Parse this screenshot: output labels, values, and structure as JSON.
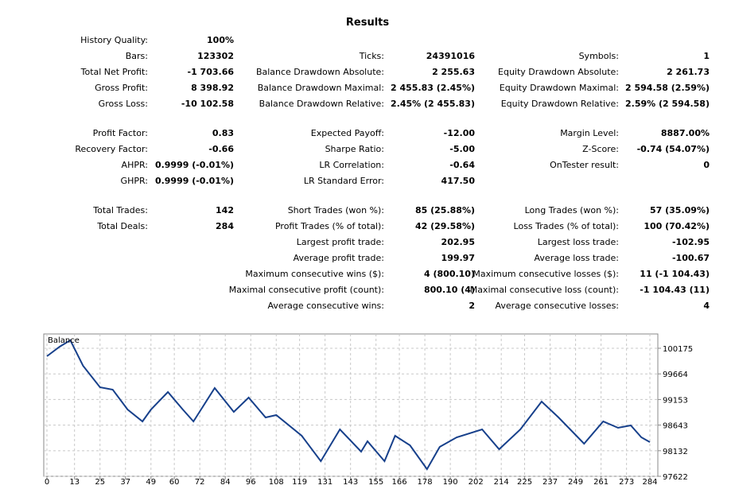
{
  "report": {
    "title": "Results",
    "sections": [
      [
        [
          [
            "History Quality:",
            "100%"
          ],
          null,
          null
        ],
        [
          [
            "Bars:",
            "123302"
          ],
          [
            "Ticks:",
            "24391016"
          ],
          [
            "Symbols:",
            "1"
          ]
        ],
        [
          [
            "Total Net Profit:",
            "-1 703.66"
          ],
          [
            "Balance Drawdown Absolute:",
            "2 255.63"
          ],
          [
            "Equity Drawdown Absolute:",
            "2 261.73"
          ]
        ],
        [
          [
            "Gross Profit:",
            "8 398.92"
          ],
          [
            "Balance Drawdown Maximal:",
            "2 455.83 (2.45%)"
          ],
          [
            "Equity Drawdown Maximal:",
            "2 594.58 (2.59%)"
          ]
        ],
        [
          [
            "Gross Loss:",
            "-10 102.58"
          ],
          [
            "Balance Drawdown Relative:",
            "2.45% (2 455.83)"
          ],
          [
            "Equity Drawdown Relative:",
            "2.59% (2 594.58)"
          ]
        ]
      ],
      [
        [
          [
            "Profit Factor:",
            "0.83"
          ],
          [
            "Expected Payoff:",
            "-12.00"
          ],
          [
            "Margin Level:",
            "8887.00%"
          ]
        ],
        [
          [
            "Recovery Factor:",
            "-0.66"
          ],
          [
            "Sharpe Ratio:",
            "-5.00"
          ],
          [
            "Z-Score:",
            "-0.74 (54.07%)"
          ]
        ],
        [
          [
            "AHPR:",
            "0.9999 (-0.01%)"
          ],
          [
            "LR Correlation:",
            "-0.64"
          ],
          [
            "OnTester result:",
            "0"
          ]
        ],
        [
          [
            "GHPR:",
            "0.9999 (-0.01%)"
          ],
          [
            "LR Standard Error:",
            "417.50"
          ],
          null
        ]
      ],
      [
        [
          [
            "Total Trades:",
            "142"
          ],
          [
            "Short Trades (won %):",
            "85 (25.88%)"
          ],
          [
            "Long Trades (won %):",
            "57 (35.09%)"
          ]
        ],
        [
          [
            "Total Deals:",
            "284"
          ],
          [
            "Profit Trades (% of total):",
            "42 (29.58%)"
          ],
          [
            "Loss Trades (% of total):",
            "100 (70.42%)"
          ]
        ],
        [
          null,
          [
            "Largest profit trade:",
            "202.95"
          ],
          [
            "Largest loss trade:",
            "-102.95"
          ]
        ],
        [
          null,
          [
            "Average profit trade:",
            "199.97"
          ],
          [
            "Average loss trade:",
            "-100.67"
          ]
        ],
        [
          null,
          [
            "Maximum consecutive wins ($):",
            "4 (800.10)"
          ],
          [
            "Maximum consecutive losses ($):",
            "11 (-1 104.43)"
          ]
        ],
        [
          null,
          [
            "Maximal consecutive profit (count):",
            "800.10 (4)"
          ],
          [
            "Maximal consecutive loss (count):",
            "-1 104.43 (11)"
          ]
        ],
        [
          null,
          [
            "Average consecutive wins:",
            "2"
          ],
          [
            "Average consecutive losses:",
            "4"
          ]
        ]
      ]
    ]
  },
  "chart_data": {
    "type": "line",
    "grid": true,
    "x": [
      0,
      6,
      11,
      17,
      25,
      31,
      38,
      45,
      49,
      57,
      64,
      69,
      79,
      88,
      95,
      103,
      108,
      120,
      129,
      138,
      148,
      151,
      159,
      164,
      171,
      179,
      185,
      193,
      205,
      213,
      223,
      233,
      241,
      253,
      262,
      269,
      275,
      280,
      284
    ],
    "series": [
      {
        "name": "Balance",
        "color": "#17408b",
        "values": [
          100016,
          100207,
          100334,
          99826,
          99398,
          99350,
          98954,
          98716,
          98954,
          99303,
          98954,
          98716,
          99382,
          98906,
          99192,
          98795,
          98843,
          98431,
          97923,
          98558,
          98114,
          98320,
          97923,
          98431,
          98240,
          97765,
          98209,
          98399,
          98558,
          98161,
          98558,
          99113,
          98795,
          98272,
          98716,
          98589,
          98637,
          98399,
          98304
        ]
      }
    ],
    "xlim": [
      0,
      284
    ],
    "xticks": [
      0,
      13,
      25,
      37,
      49,
      60,
      72,
      84,
      96,
      108,
      119,
      131,
      143,
      155,
      166,
      178,
      190,
      202,
      214,
      225,
      237,
      249,
      261,
      273,
      284
    ],
    "ylim": [
      97622,
      100460
    ],
    "yticks": [
      97622,
      98132,
      98643,
      99153,
      99664,
      100175
    ]
  }
}
